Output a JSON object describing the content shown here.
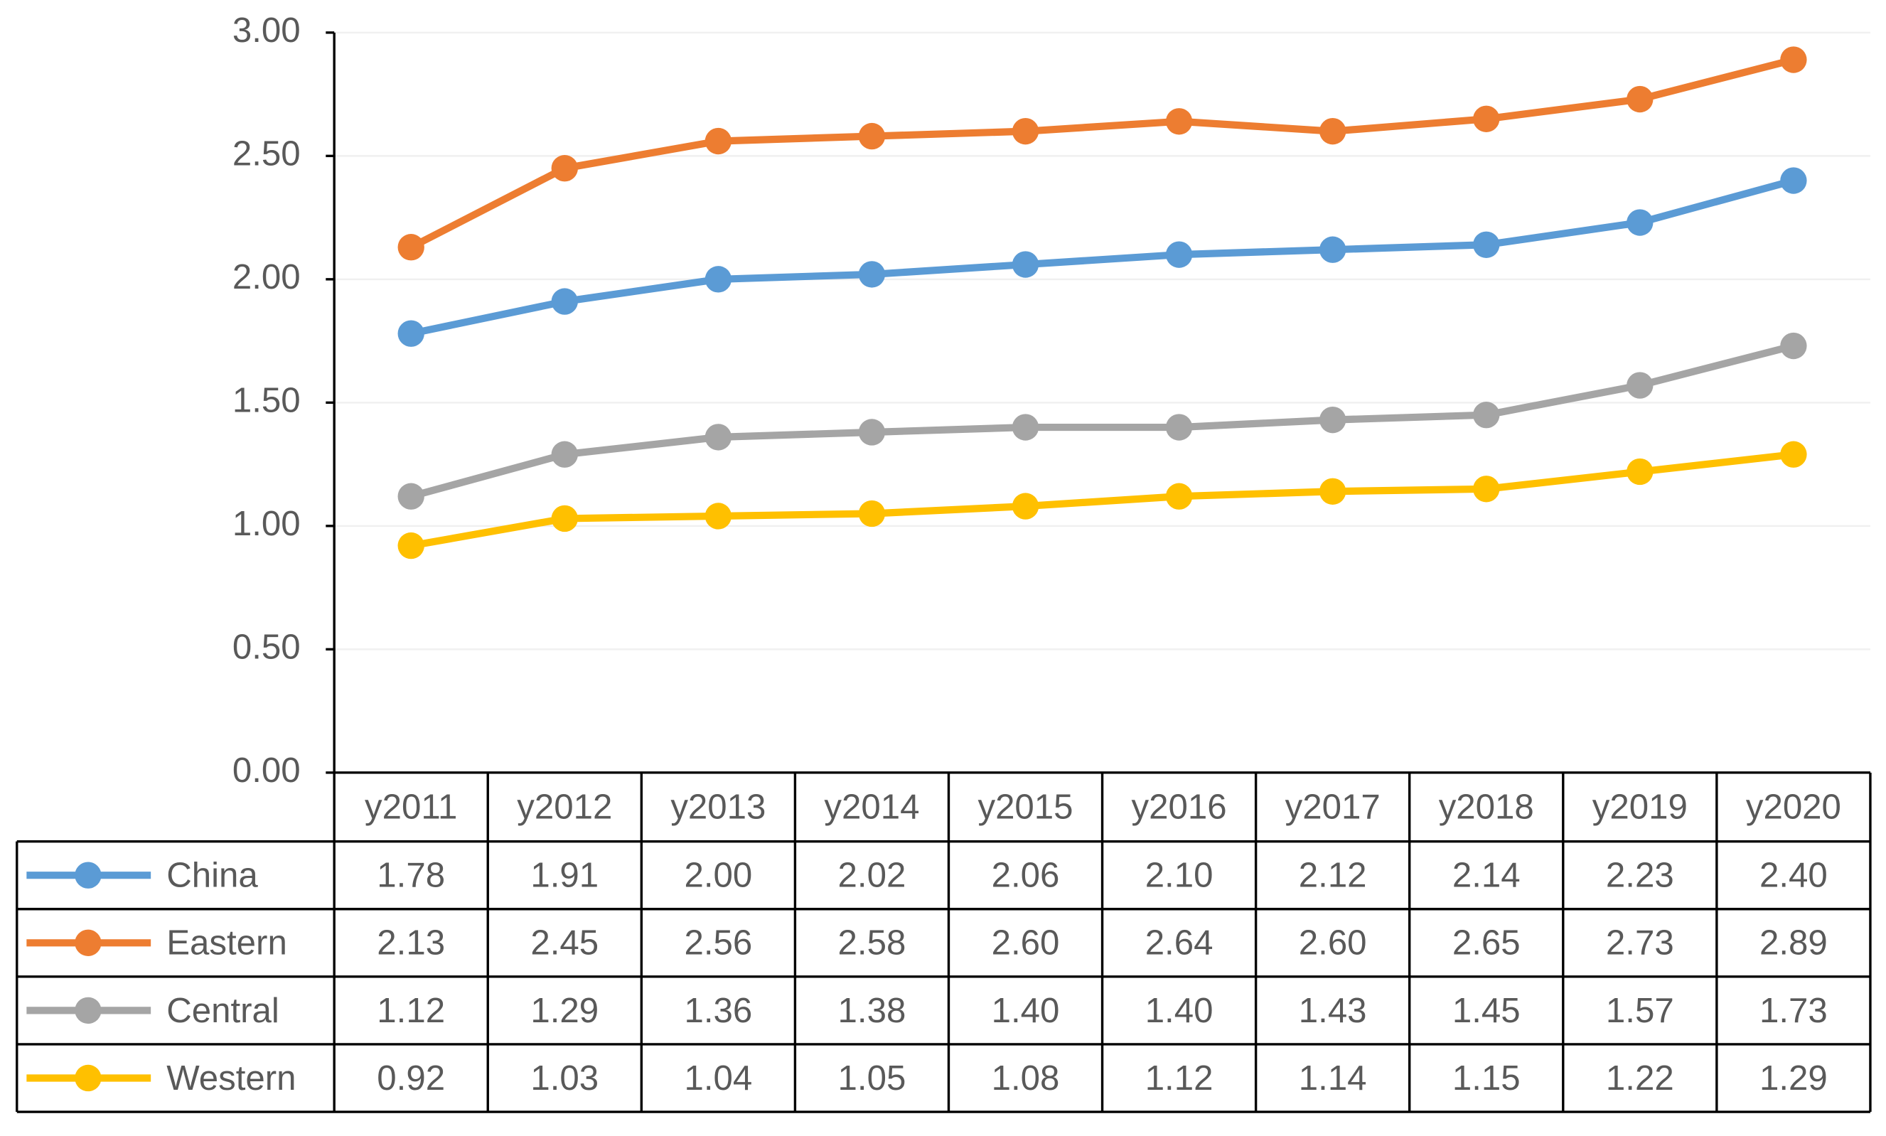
{
  "chart_data": {
    "type": "line",
    "categories": [
      "y2011",
      "y2012",
      "y2013",
      "y2014",
      "y2015",
      "y2016",
      "y2017",
      "y2018",
      "y2019",
      "y2020"
    ],
    "series": [
      {
        "name": "China",
        "color": "#5b9bd5",
        "values": [
          1.78,
          1.91,
          2.0,
          2.02,
          2.06,
          2.1,
          2.12,
          2.14,
          2.23,
          2.4
        ],
        "value_labels": [
          "1.78",
          "1.91",
          "2.00",
          "2.02",
          "2.06",
          "2.10",
          "2.12",
          "2.14",
          "2.23",
          "2.40"
        ]
      },
      {
        "name": "Eastern",
        "color": "#ed7d31",
        "values": [
          2.13,
          2.45,
          2.56,
          2.58,
          2.6,
          2.64,
          2.6,
          2.65,
          2.73,
          2.89
        ],
        "value_labels": [
          "2.13",
          "2.45",
          "2.56",
          "2.58",
          "2.60",
          "2.64",
          "2.60",
          "2.65",
          "2.73",
          "2.89"
        ]
      },
      {
        "name": "Central",
        "color": "#a5a5a5",
        "values": [
          1.12,
          1.29,
          1.36,
          1.38,
          1.4,
          1.4,
          1.43,
          1.45,
          1.57,
          1.73
        ],
        "value_labels": [
          "1.12",
          "1.29",
          "1.36",
          "1.38",
          "1.40",
          "1.40",
          "1.43",
          "1.45",
          "1.57",
          "1.73"
        ]
      },
      {
        "name": "Western",
        "color": "#ffc000",
        "values": [
          0.92,
          1.03,
          1.04,
          1.05,
          1.08,
          1.12,
          1.14,
          1.15,
          1.22,
          1.29
        ],
        "value_labels": [
          "0.92",
          "1.03",
          "1.04",
          "1.05",
          "1.08",
          "1.12",
          "1.14",
          "1.15",
          "1.22",
          "1.29"
        ]
      }
    ],
    "ylim": [
      0,
      3
    ],
    "yticks": [
      {
        "value": 0,
        "label": "0.00"
      },
      {
        "value": 0.5,
        "label": "0.50"
      },
      {
        "value": 1,
        "label": "1.00"
      },
      {
        "value": 1.5,
        "label": "1.50"
      },
      {
        "value": 2,
        "label": "2.00"
      },
      {
        "value": 2.5,
        "label": "2.50"
      },
      {
        "value": 3,
        "label": "3.00"
      }
    ],
    "grid": true
  }
}
